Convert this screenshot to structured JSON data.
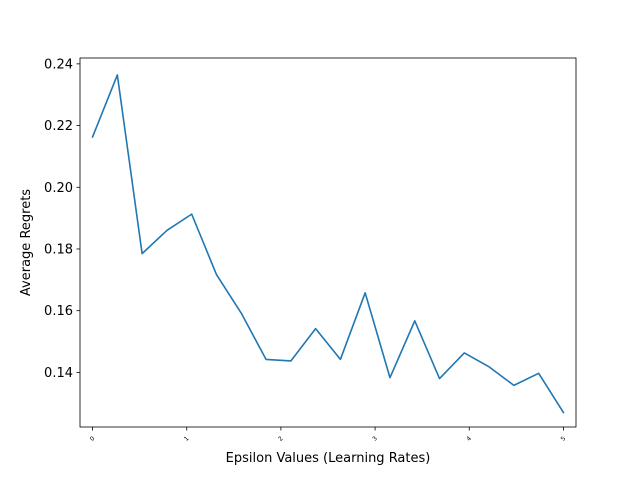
{
  "chart_data": {
    "type": "line",
    "title": "",
    "xlabel": "Epsilon Values (Learning Rates)",
    "ylabel": "Average Regrets",
    "xlim": [
      -0.1333,
      5.1333
    ],
    "ylim": [
      0.1223,
      0.2419
    ],
    "x_ticks": [
      0,
      1,
      2,
      3,
      4,
      5
    ],
    "x_tick_labels": [
      "0",
      "1",
      "2",
      "3",
      "4",
      "5"
    ],
    "y_ticks": [
      0.14,
      0.16,
      0.18,
      0.2,
      0.22,
      0.24
    ],
    "y_tick_labels": [
      "0.14",
      "0.16",
      "0.18",
      "0.20",
      "0.22",
      "0.24"
    ],
    "grid": false,
    "legend": "none",
    "series": [
      {
        "color": "#1f77b4",
        "x": [
          0,
          0.2632,
          0.5263,
          0.7895,
          1.0526,
          1.3158,
          1.5789,
          1.8421,
          2.1053,
          2.3684,
          2.6316,
          2.8947,
          3.1579,
          3.4211,
          3.6842,
          3.9474,
          4.2105,
          4.4737,
          4.7368,
          5.0
        ],
        "y": [
          0.2163,
          0.2364,
          0.1785,
          0.186,
          0.1913,
          0.1717,
          0.1592,
          0.1442,
          0.1437,
          0.1542,
          0.1442,
          0.1658,
          0.1383,
          0.1567,
          0.138,
          0.1463,
          0.1418,
          0.1358,
          0.1397,
          0.127
        ]
      }
    ]
  }
}
